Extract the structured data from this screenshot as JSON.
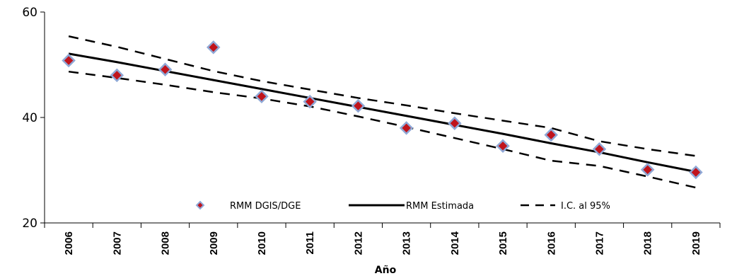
{
  "chart_data": {
    "type": "scatter",
    "title": "",
    "xlabel": "Año",
    "ylabel": "",
    "x": [
      "2006",
      "2007",
      "2008",
      "2009",
      "2010",
      "2011",
      "2012",
      "2013",
      "2014",
      "2015",
      "2016",
      "2017",
      "2018",
      "2019"
    ],
    "ylim": [
      20,
      60
    ],
    "yticks": [
      "20",
      "40",
      "60"
    ],
    "series": [
      {
        "name": "RMM DGIS/DGE",
        "kind": "markers",
        "marker": "diamond",
        "marker_fill": "#c0141c",
        "marker_edge": "#8fa8d6",
        "values": [
          50.8,
          48.0,
          49.1,
          53.3,
          44.0,
          43.0,
          42.2,
          38.0,
          38.9,
          34.6,
          36.7,
          34.0,
          30.1,
          29.6
        ]
      },
      {
        "name": "RMM Estimada",
        "kind": "solid-line",
        "color": "#000000",
        "values": [
          52.1,
          50.5,
          48.8,
          47.1,
          45.4,
          43.7,
          42.0,
          40.3,
          38.6,
          36.9,
          35.1,
          33.4,
          31.5,
          29.7
        ]
      },
      {
        "name": "I.C. al 95%",
        "kind": "dashed-line",
        "color": "#000000",
        "values": [
          55.4,
          53.4,
          51.1,
          48.8,
          46.9,
          45.3,
          43.7,
          42.3,
          40.8,
          39.4,
          38.0,
          35.5,
          34.0,
          32.7
        ]
      },
      {
        "name": "",
        "kind": "dashed-line",
        "color": "#000000",
        "values": [
          48.7,
          47.5,
          46.2,
          44.8,
          43.6,
          42.1,
          40.2,
          38.2,
          36.1,
          34.0,
          31.8,
          30.8,
          28.8,
          26.7
        ]
      }
    ],
    "legend": [
      "RMM DGIS/DGE",
      "RMM Estimada",
      "I.C. al 95%"
    ],
    "legend_position": "bottom-center",
    "grid": false
  }
}
